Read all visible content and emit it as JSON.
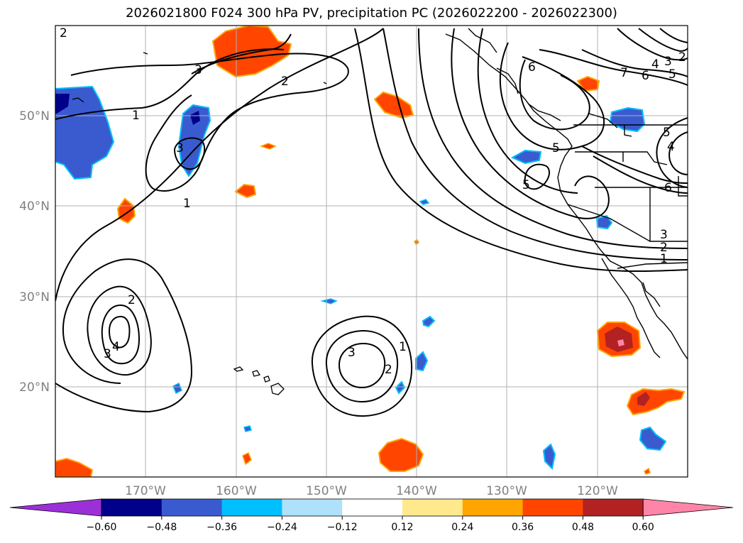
{
  "title": "2026021800 F024 300 hPa PV, precipitation PC (2026022200 - 2026022300)",
  "map": {
    "lat_labels": [
      "50°N",
      "40°N",
      "30°N",
      "20°N"
    ],
    "lon_labels": [
      "170°W",
      "160°W",
      "150°W",
      "140°W",
      "130°W",
      "120°W"
    ],
    "extent": {
      "lon_min": -180,
      "lon_max": -110,
      "lat_min": 10,
      "lat_max": 60
    },
    "contour_labels": [
      "2",
      "3",
      "2",
      "1",
      "3",
      "1",
      "2",
      "4",
      "3",
      "6",
      "7",
      "6",
      "4",
      "3",
      "2",
      "5",
      "5",
      "5",
      "4",
      "6",
      "5",
      "3",
      "2",
      "1",
      "3",
      "1",
      "2"
    ]
  },
  "colorbar": {
    "ticks": [
      "−0.60",
      "−0.48",
      "−0.36",
      "−0.24",
      "−0.12",
      "0.12",
      "0.24",
      "0.36",
      "0.48",
      "0.60"
    ],
    "colors": [
      "#9b30d8",
      "#00008b",
      "#3a5bd0",
      "#00bfff",
      "#afe1fa",
      "#ffffff",
      "#ffe98c",
      "#ffa500",
      "#ff4500",
      "#b22222",
      "#ff85a8"
    ]
  },
  "colors": {
    "grid": "#b0b0b0",
    "contour": "#000000",
    "coast": "#000000"
  }
}
